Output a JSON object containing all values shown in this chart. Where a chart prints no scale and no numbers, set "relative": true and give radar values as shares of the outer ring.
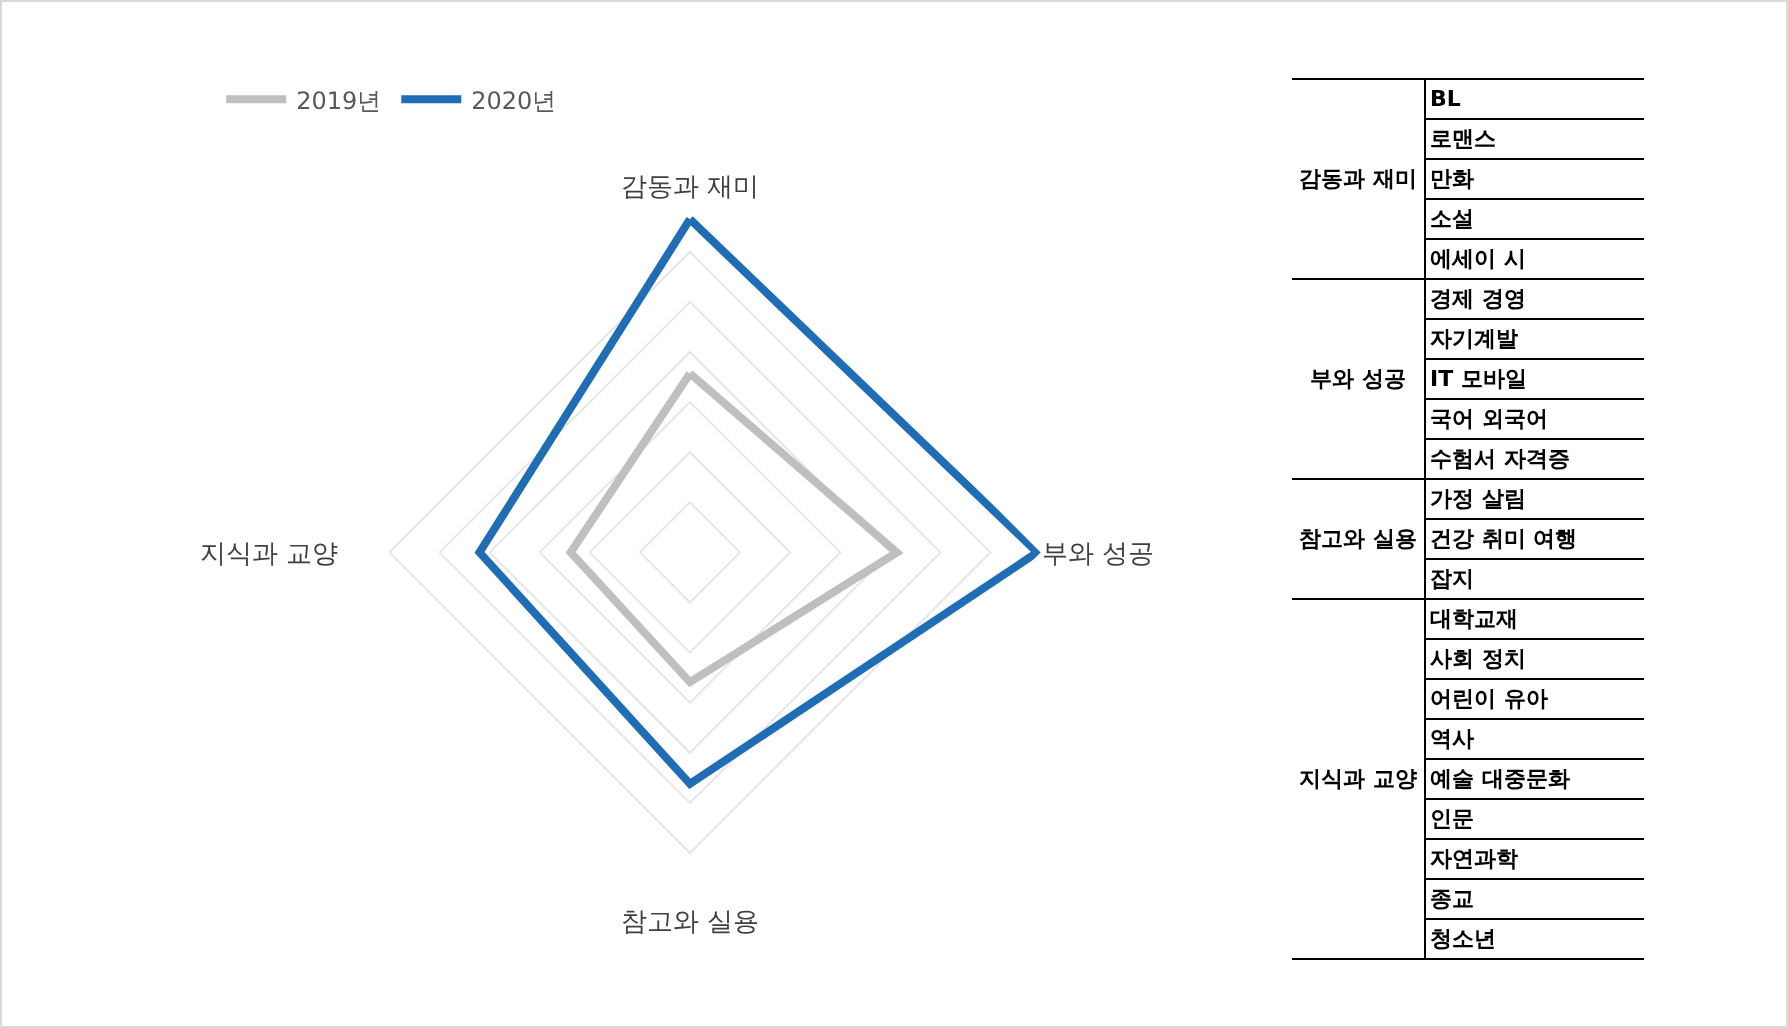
{
  "chart_data": [
    {
      "type": "radar",
      "relative": true,
      "grid": true,
      "legend": "top left",
      "marker": "none",
      "line_style": "solid",
      "categories": [
        "감동과 재미",
        "부와 성공",
        "참고와 실용",
        "지식과 교양"
      ],
      "series": [
        {
          "name": "2019년",
          "color": "#bfbfbf",
          "values": [
            0.51,
            0.59,
            0.37,
            0.34
          ]
        },
        {
          "name": "2020년",
          "color": "#1f6db5",
          "values": [
            0.95,
            0.99,
            0.66,
            0.6
          ]
        }
      ]
    },
    {
      "type": "other",
      "cell_labels": [
        [
          "감동과 재미",
          "BL"
        ],
        [
          null,
          "로맨스"
        ],
        [
          null,
          "만화"
        ],
        [
          null,
          "소설"
        ],
        [
          null,
          "에세이 시"
        ],
        [
          "부와 성공",
          "경제 경영"
        ],
        [
          null,
          "자기계발"
        ],
        [
          null,
          "IT 모바일"
        ],
        [
          null,
          "국어 외국어"
        ],
        [
          null,
          "수험서 자격증"
        ],
        [
          "참고와 실용",
          "가정 살림"
        ],
        [
          null,
          "건강 취미 여행"
        ],
        [
          null,
          "잡지"
        ],
        [
          "지식과 교양",
          "대학교재"
        ],
        [
          null,
          "사회 정치"
        ],
        [
          null,
          "어린이 유아"
        ],
        [
          null,
          "역사"
        ],
        [
          null,
          "예술 대중문화"
        ],
        [
          null,
          "인문"
        ],
        [
          null,
          "자연과학"
        ],
        [
          null,
          "종교"
        ],
        [
          null,
          "청소년"
        ]
      ]
    }
  ]
}
